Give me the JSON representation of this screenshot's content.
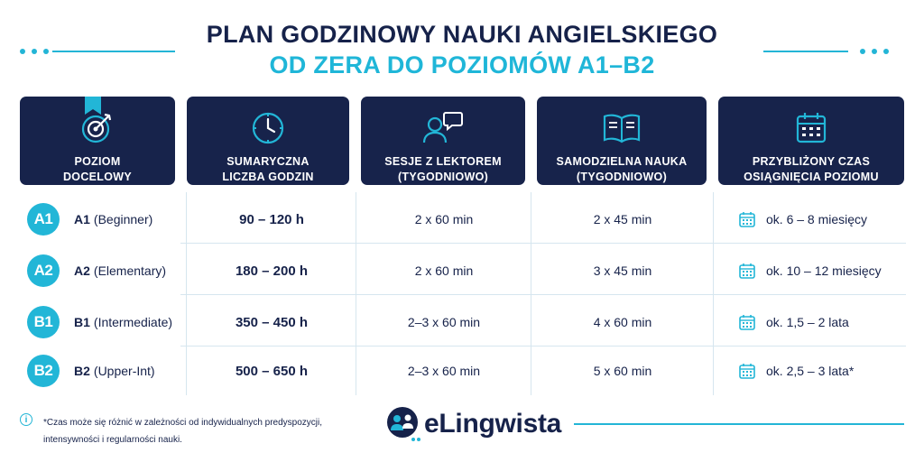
{
  "title": {
    "line1": "PLAN GODZINOWY NAUKI ANGIELSKIEGO",
    "line2": "OD ZERA DO POZIOMÓW A1–B2"
  },
  "headers": [
    {
      "icon": "target-icon",
      "line1": "POZIOM",
      "line2": "DOCELOWY"
    },
    {
      "icon": "clock-icon",
      "line1": "SUMARYCZNA",
      "line2": "LICZBA GODZIN"
    },
    {
      "icon": "tutor-chat-icon",
      "line1": "SESJE Z LEKTOREM",
      "line2": "(TYGODNIOWO)"
    },
    {
      "icon": "book-icon",
      "line1": "SAMODZIELNA NAUKA",
      "line2": "(TYGODNIOWO)"
    },
    {
      "icon": "calendar-icon",
      "line1": "PRZYBLIŻONY CZAS",
      "line2": "OSIĄGNIĘCIA POZIOMU"
    }
  ],
  "rows": [
    {
      "badge": "A1",
      "code": "A1",
      "name": "(Beginner)",
      "hours": "90 – 120 h",
      "sessions": "2 x 60 min",
      "self": "2 x 45 min",
      "time": "ok. 6 – 8 miesięcy"
    },
    {
      "badge": "A2",
      "code": "A2",
      "name": "(Elementary)",
      "hours": "180 – 200 h",
      "sessions": "2 x 60 min",
      "self": "3 x 45 min",
      "time": "ok. 10 – 12 miesięcy"
    },
    {
      "badge": "B1",
      "code": "B1",
      "name": "(Intermediate)",
      "hours": "350 – 450 h",
      "sessions": "2–3 x 60 min",
      "self": "4 x 60 min",
      "time": "ok. 1,5 – 2 lata"
    },
    {
      "badge": "B2",
      "code": "B2",
      "name": "(Upper-Int)",
      "hours": "500 – 650 h",
      "sessions": "2–3 x 60 min",
      "self": "5 x 60 min",
      "time": "ok. 2,5 – 3 lata*"
    }
  ],
  "footer": {
    "info_icon": "info-icon",
    "note_line1": "*Czas może się różnić w zależności od indywidualnych predyspozycji,",
    "note_line2": "intensywności i regularności nauki.",
    "logo_text": "eLingwista"
  },
  "colors": {
    "navy": "#17234b",
    "accent": "#22b6d7",
    "divider": "#d6e6ef"
  }
}
